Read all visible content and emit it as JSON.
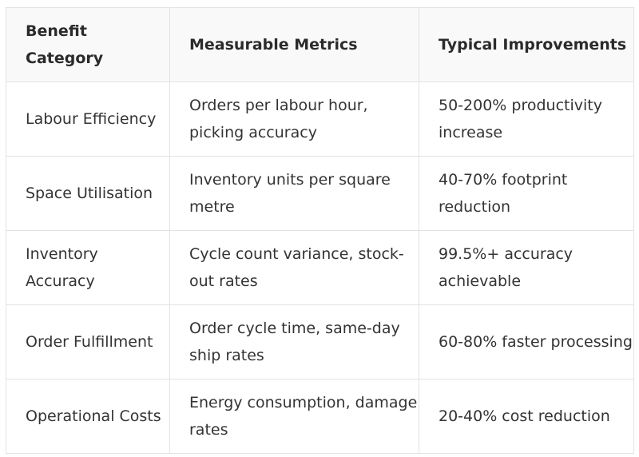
{
  "table": {
    "headers": [
      "Benefit Category",
      "Measurable Metrics",
      "Typical Improvements"
    ],
    "rows": [
      [
        "Labour Efficiency",
        "Orders per labour hour, picking accuracy",
        "50-200% productivity increase"
      ],
      [
        "Space Utilisation",
        "Inventory units per square metre",
        "40-70% footprint reduction"
      ],
      [
        "Inventory Accuracy",
        "Cycle count variance, stock-out rates",
        "99.5%+ accuracy achievable"
      ],
      [
        "Order Fulfillment",
        "Order cycle time, same-day ship rates",
        "60-80% faster processing"
      ],
      [
        "Operational Costs",
        "Energy consumption, damage rates",
        "20-40% cost reduction"
      ]
    ]
  }
}
